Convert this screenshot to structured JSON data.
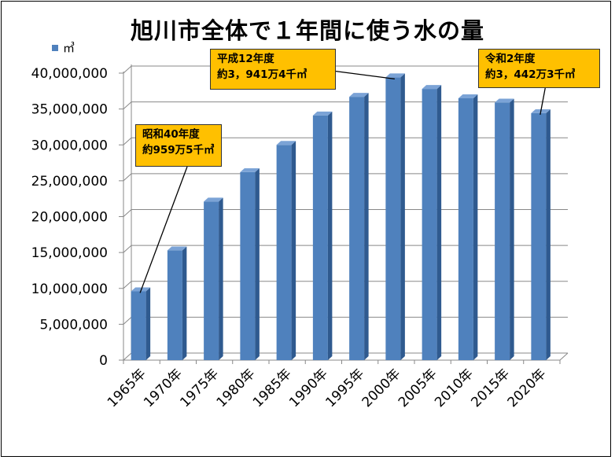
{
  "title": "旭川市全体で１年間に使う水の量",
  "chart_data": {
    "type": "bar",
    "title": "旭川市全体で１年間に使う水の量",
    "legend": {
      "label": "㎥",
      "color": "#4F81BD",
      "position": "top-left"
    },
    "categories": [
      "1965年",
      "1970年",
      "1975年",
      "1980年",
      "1985年",
      "1990年",
      "1995年",
      "2000年",
      "2005年",
      "2010年",
      "2015年",
      "2020年"
    ],
    "series": [
      {
        "values": [
          9595000,
          15300000,
          22100000,
          26200000,
          30000000,
          34100000,
          36700000,
          39414000,
          37800000,
          36500000,
          35900000,
          34423000
        ]
      }
    ],
    "ylim": [
      0,
      40000000
    ],
    "yticks": [
      "0",
      "5,000,000",
      "10,000,000",
      "15,000,000",
      "20,000,000",
      "25,000,000",
      "30,000,000",
      "35,000,000",
      "40,000,000"
    ],
    "grid": true,
    "annotations": [
      {
        "line1": "昭和40年度",
        "line2": "約959万5千㎥",
        "category": "1965年"
      },
      {
        "line1": "平成12年度",
        "line2": "約3，941万4千㎥",
        "category": "2000年"
      },
      {
        "line1": "令和2年度",
        "line2": "約3，442万3千㎥",
        "category": "2020年"
      }
    ]
  }
}
